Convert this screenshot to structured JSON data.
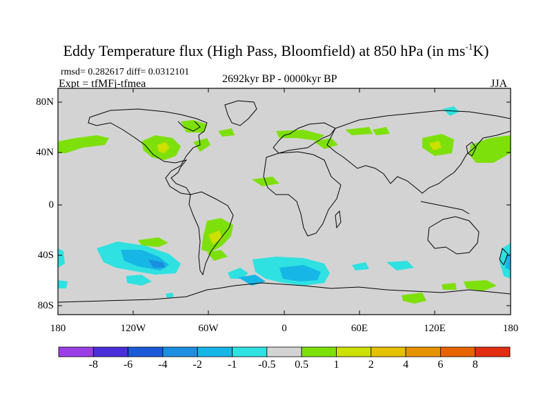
{
  "title": {
    "main": "Eddy Temperature flux (High Pass, Bloomfield) at 850 hPa (in ms",
    "sup": "-1",
    "tail": "K)"
  },
  "stats": {
    "rmsd_line": "rmsd= 0.282617 diff= 0.0312101",
    "expt_line": "Expt = tfMFj-tfmea"
  },
  "period": "2692kyr BP - 0000kyr BP",
  "season": "JJA",
  "lat_labels": [
    "80N",
    "40N",
    "0",
    "40S",
    "80S"
  ],
  "lon_labels": [
    "180",
    "120W",
    "60W",
    "0",
    "60E",
    "120E",
    "180"
  ],
  "map": {
    "background": "#d3d3d3",
    "coastline_color": "#000000"
  },
  "colorbar": {
    "colors": [
      "#9b3ee8",
      "#4b2fd8",
      "#1c5ad8",
      "#1b8fe0",
      "#16b6e6",
      "#2fe1e1",
      "#d3d3d3",
      "#7ee00a",
      "#cde000",
      "#e6c100",
      "#e79200",
      "#e76400",
      "#e32d10"
    ],
    "labels": [
      "-8",
      "-6",
      "-4",
      "-2",
      "-1",
      "-0.5",
      "0.5",
      "1",
      "2",
      "4",
      "6",
      "8"
    ]
  }
}
